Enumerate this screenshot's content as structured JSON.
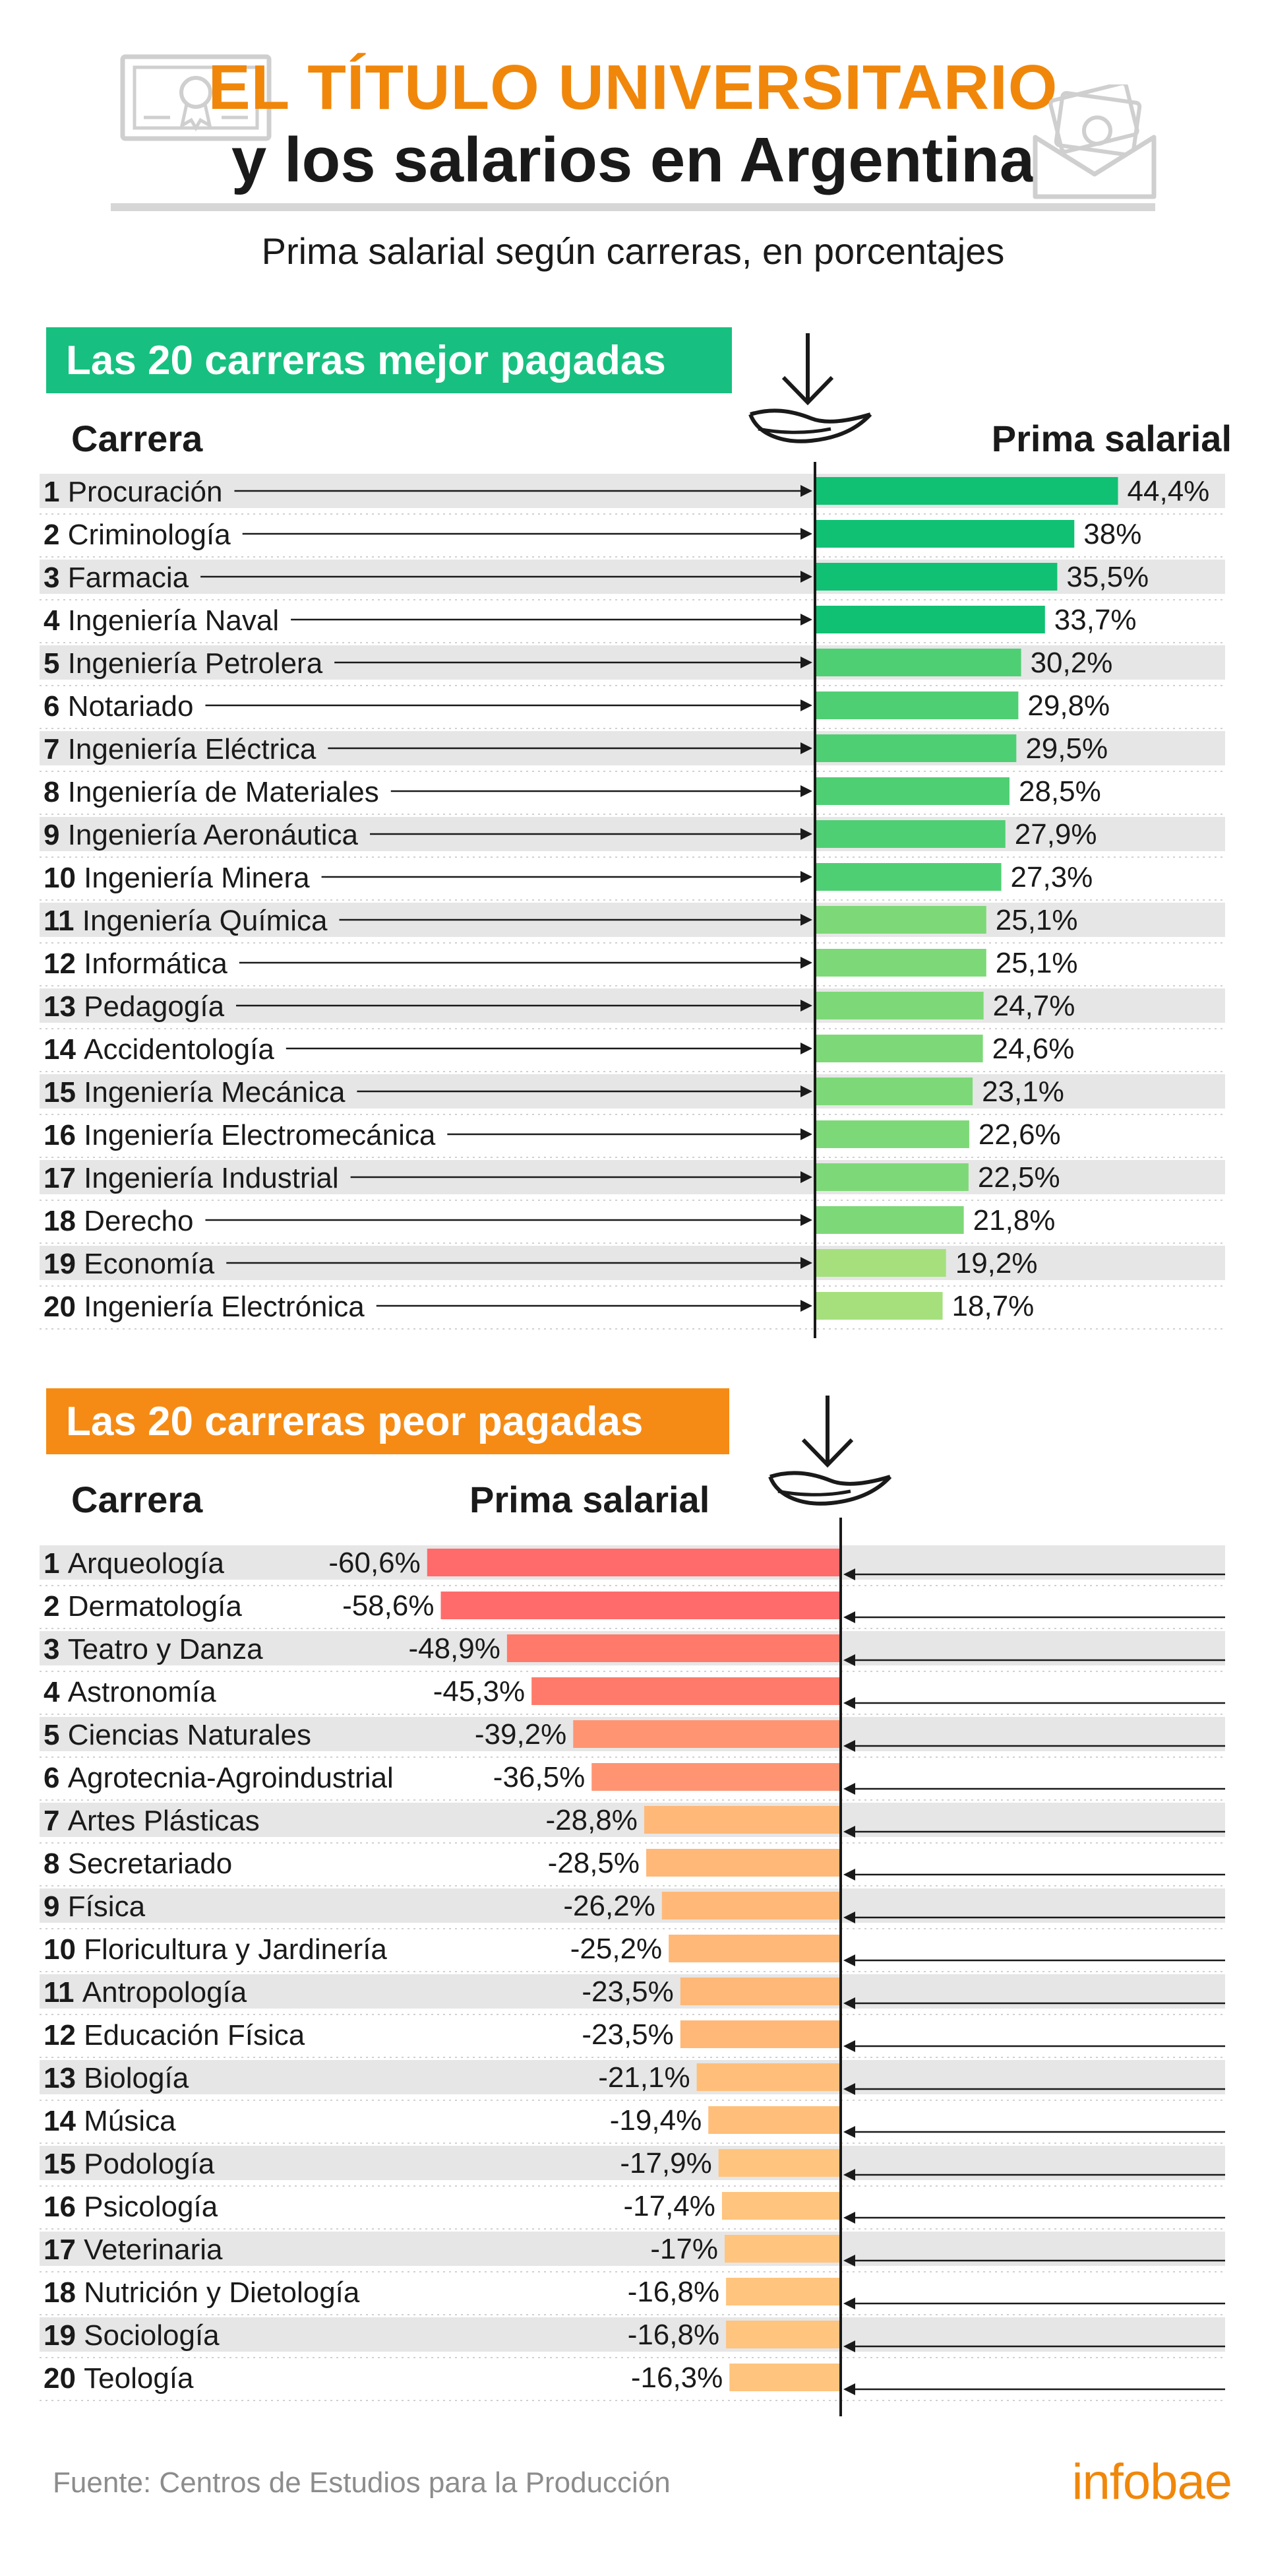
{
  "header": {
    "title_line1": "EL TÍTULO UNIVERSITARIO",
    "title_line2": "y los salarios en Argentina",
    "subtitle": "Prima salarial según carreras, en porcentajes"
  },
  "colors": {
    "accent_orange": "#f0870a",
    "top_badge_green": "#17c080",
    "bottom_badge_orange": "#f58b14",
    "stripe_grey": "#e6e6e6"
  },
  "icons": [
    "diploma-icon",
    "salary-envelope-icon",
    "down-arrow-hand-icon"
  ],
  "chart_data": [
    {
      "type": "bar",
      "title": "Las 20 carreras mejor pagadas",
      "category_header": "Carrera",
      "value_header": "Prima salarial",
      "unit": "%",
      "ranks": [
        "1",
        "2",
        "3",
        "4",
        "5",
        "6",
        "7",
        "8",
        "9",
        "10",
        "11",
        "12",
        "13",
        "14",
        "15",
        "16",
        "17",
        "18",
        "19",
        "20"
      ],
      "categories": [
        "Procuración",
        "Criminología",
        "Farmacia",
        "Ingeniería Naval",
        "Ingeniería Petrolera",
        "Notariado",
        "Ingeniería Eléctrica",
        "Ingeniería de Materiales",
        "Ingeniería Aeronáutica",
        "Ingeniería Minera",
        "Ingeniería Química",
        "Informática",
        "Pedagogía",
        "Accidentología",
        "Ingeniería Mecánica",
        "Ingeniería Electromecánica",
        "Ingeniería Industrial",
        "Derecho",
        "Economía",
        "Ingeniería Electrónica"
      ],
      "values": [
        44.4,
        38,
        35.5,
        33.7,
        30.2,
        29.8,
        29.5,
        28.5,
        27.9,
        27.3,
        25.1,
        25.1,
        24.7,
        24.6,
        23.1,
        22.6,
        22.5,
        21.8,
        19.2,
        18.7
      ],
      "value_labels": [
        "44,4%",
        "38%",
        "35,5%",
        "33,7%",
        "30,2%",
        "29,8%",
        "29,5%",
        "28,5%",
        "27,9%",
        "27,3%",
        "25,1%",
        "25,1%",
        "24,7%",
        "24,6%",
        "23,1%",
        "22,6%",
        "22,5%",
        "21,8%",
        "19,2%",
        "18,7%"
      ],
      "colors": [
        "#10c173",
        "#10c173",
        "#10c173",
        "#10c173",
        "#4fcf73",
        "#4fcf73",
        "#4fcf73",
        "#4fcf73",
        "#4fcf73",
        "#4fcf73",
        "#7dd977",
        "#7dd977",
        "#7dd977",
        "#7dd977",
        "#7dd977",
        "#7dd977",
        "#7dd977",
        "#7dd977",
        "#a5e07d",
        "#a5e07d"
      ]
    },
    {
      "type": "bar",
      "title": "Las 20 carreras peor pagadas",
      "category_header": "Carrera",
      "value_header": "Prima salarial",
      "unit": "%",
      "ranks": [
        "1",
        "2",
        "3",
        "4",
        "5",
        "6",
        "7",
        "8",
        "9",
        "10",
        "11",
        "12",
        "13",
        "14",
        "15",
        "16",
        "17",
        "18",
        "19",
        "20"
      ],
      "categories": [
        "Arqueología",
        "Dermatología",
        "Teatro y Danza",
        "Astronomía",
        "Ciencias Naturales",
        "Agrotecnia-Agroindustrial",
        "Artes Plásticas",
        "Secretariado",
        "Física",
        "Floricultura y Jardinería",
        "Antropología",
        "Educación Física",
        "Biología",
        "Música",
        "Podología",
        "Psicología",
        "Veterinaria",
        "Nutrición y Dietología",
        "Sociología",
        "Teología"
      ],
      "values": [
        -60.6,
        -58.6,
        -48.9,
        -45.3,
        -39.2,
        -36.5,
        -28.8,
        -28.5,
        -26.2,
        -25.2,
        -23.5,
        -23.5,
        -21.1,
        -19.4,
        -17.9,
        -17.4,
        -17,
        -16.8,
        -16.8,
        -16.3
      ],
      "value_labels": [
        "-60,6%",
        "-58,6%",
        "-48,9%",
        "-45,3%",
        "-39,2%",
        "-36,5%",
        "-28,8%",
        "-28,5%",
        "-26,2%",
        "-25,2%",
        "-23,5%",
        "-23,5%",
        "-21,1%",
        "-19,4%",
        "-17,9%",
        "-17,4%",
        "-17%",
        "-16,8%",
        "-16,8%",
        "-16,3%"
      ],
      "colors": [
        "#ff6b6b",
        "#ff6b6b",
        "#ff7a6a",
        "#ff7a6a",
        "#ff9473",
        "#ff9473",
        "#ffb877",
        "#ffb877",
        "#ffb877",
        "#ffb877",
        "#ffb877",
        "#ffb877",
        "#ffbf7a",
        "#ffbf7a",
        "#ffc47d",
        "#ffc47d",
        "#ffc47d",
        "#ffc47d",
        "#ffc47d",
        "#ffc47d"
      ]
    }
  ],
  "footer": {
    "source": "Fuente: Centros de Estudios para la Producción",
    "brand": "infobae"
  }
}
